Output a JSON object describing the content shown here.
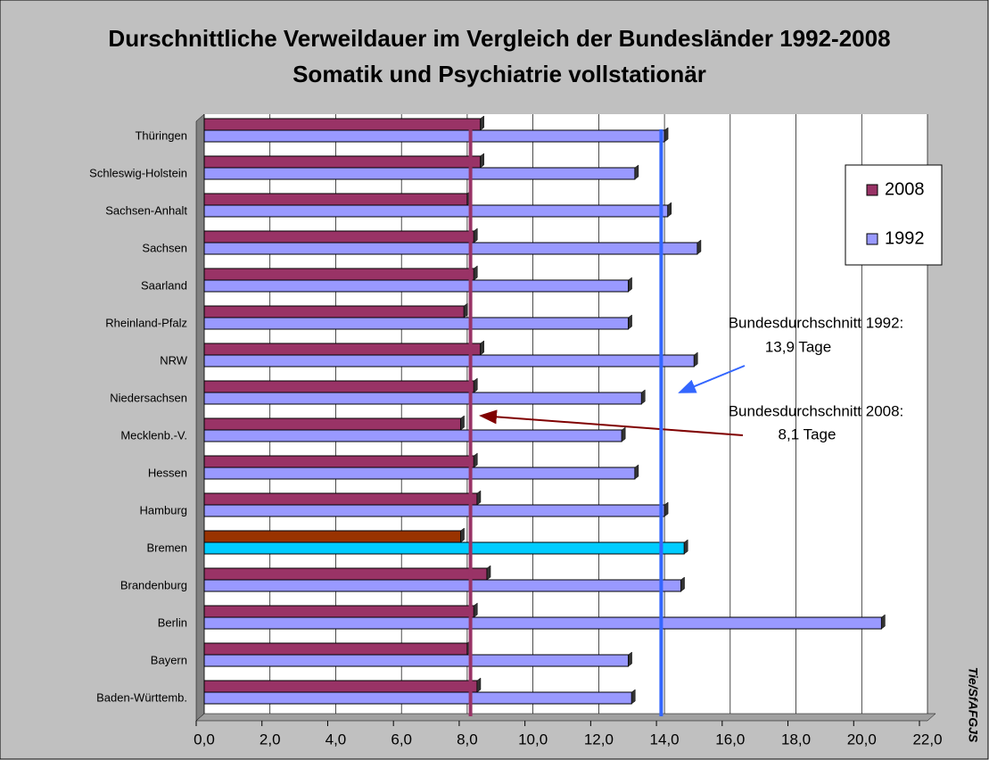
{
  "chart_data": {
    "type": "hbar",
    "title": [
      "Durschnittliche Verweildauer im Vergleich der Bundesländer 1992-2008",
      "Somatik und Psychiatrie vollstationär"
    ],
    "categories": [
      "Thüringen",
      "Schleswig-Holstein",
      "Sachsen-Anhalt",
      "Sachsen",
      "Saarland",
      "Rheinland-Pfalz",
      "NRW",
      "Niedersachsen",
      "Mecklenb.-V.",
      "Hessen",
      "Hamburg",
      "Bremen",
      "Brandenburg",
      "Berlin",
      "Bayern",
      "Baden-Württemb."
    ],
    "series": [
      {
        "name": "2008",
        "color": "#993366",
        "highlight": {
          "category": "Bremen",
          "color": "#993300"
        },
        "values": [
          8.4,
          8.4,
          8.0,
          8.2,
          8.2,
          7.9,
          8.4,
          8.2,
          7.8,
          8.2,
          8.3,
          7.8,
          8.6,
          8.2,
          8.0,
          8.3
        ]
      },
      {
        "name": "1992",
        "color": "#9999ff",
        "highlight": {
          "category": "Bremen",
          "color": "#00ccff"
        },
        "values": [
          14.0,
          13.1,
          14.1,
          15.0,
          12.9,
          12.9,
          14.9,
          13.3,
          12.7,
          13.1,
          14.0,
          14.6,
          14.5,
          20.6,
          12.9,
          13.0
        ]
      }
    ],
    "xlim": [
      0,
      22
    ],
    "xticks": [
      {
        "value": 0,
        "label": "0,0"
      },
      {
        "value": 2,
        "label": "2,0"
      },
      {
        "value": 4,
        "label": "4,0"
      },
      {
        "value": 6,
        "label": "6,0"
      },
      {
        "value": 8,
        "label": "8,0"
      },
      {
        "value": 10,
        "label": "10,0"
      },
      {
        "value": 12,
        "label": "12,0"
      },
      {
        "value": 14,
        "label": "14,0"
      },
      {
        "value": 16,
        "label": "16,0"
      },
      {
        "value": 18,
        "label": "18,0"
      },
      {
        "value": 20,
        "label": "20,0"
      },
      {
        "value": 22,
        "label": "22,0"
      }
    ],
    "grid": true,
    "legend": "upper right",
    "reference_lines": [
      {
        "value": 8.1,
        "color": "#993366"
      },
      {
        "value": 13.9,
        "color": "#3366ff"
      }
    ],
    "annotations": [
      [
        "Bundesdurchschnitt 1992:",
        "13,9 Tage"
      ],
      [
        "Bundesdurchschnitt 2008:",
        "8,1 Tage"
      ]
    ],
    "source": "Tie/SfAFGJS"
  }
}
